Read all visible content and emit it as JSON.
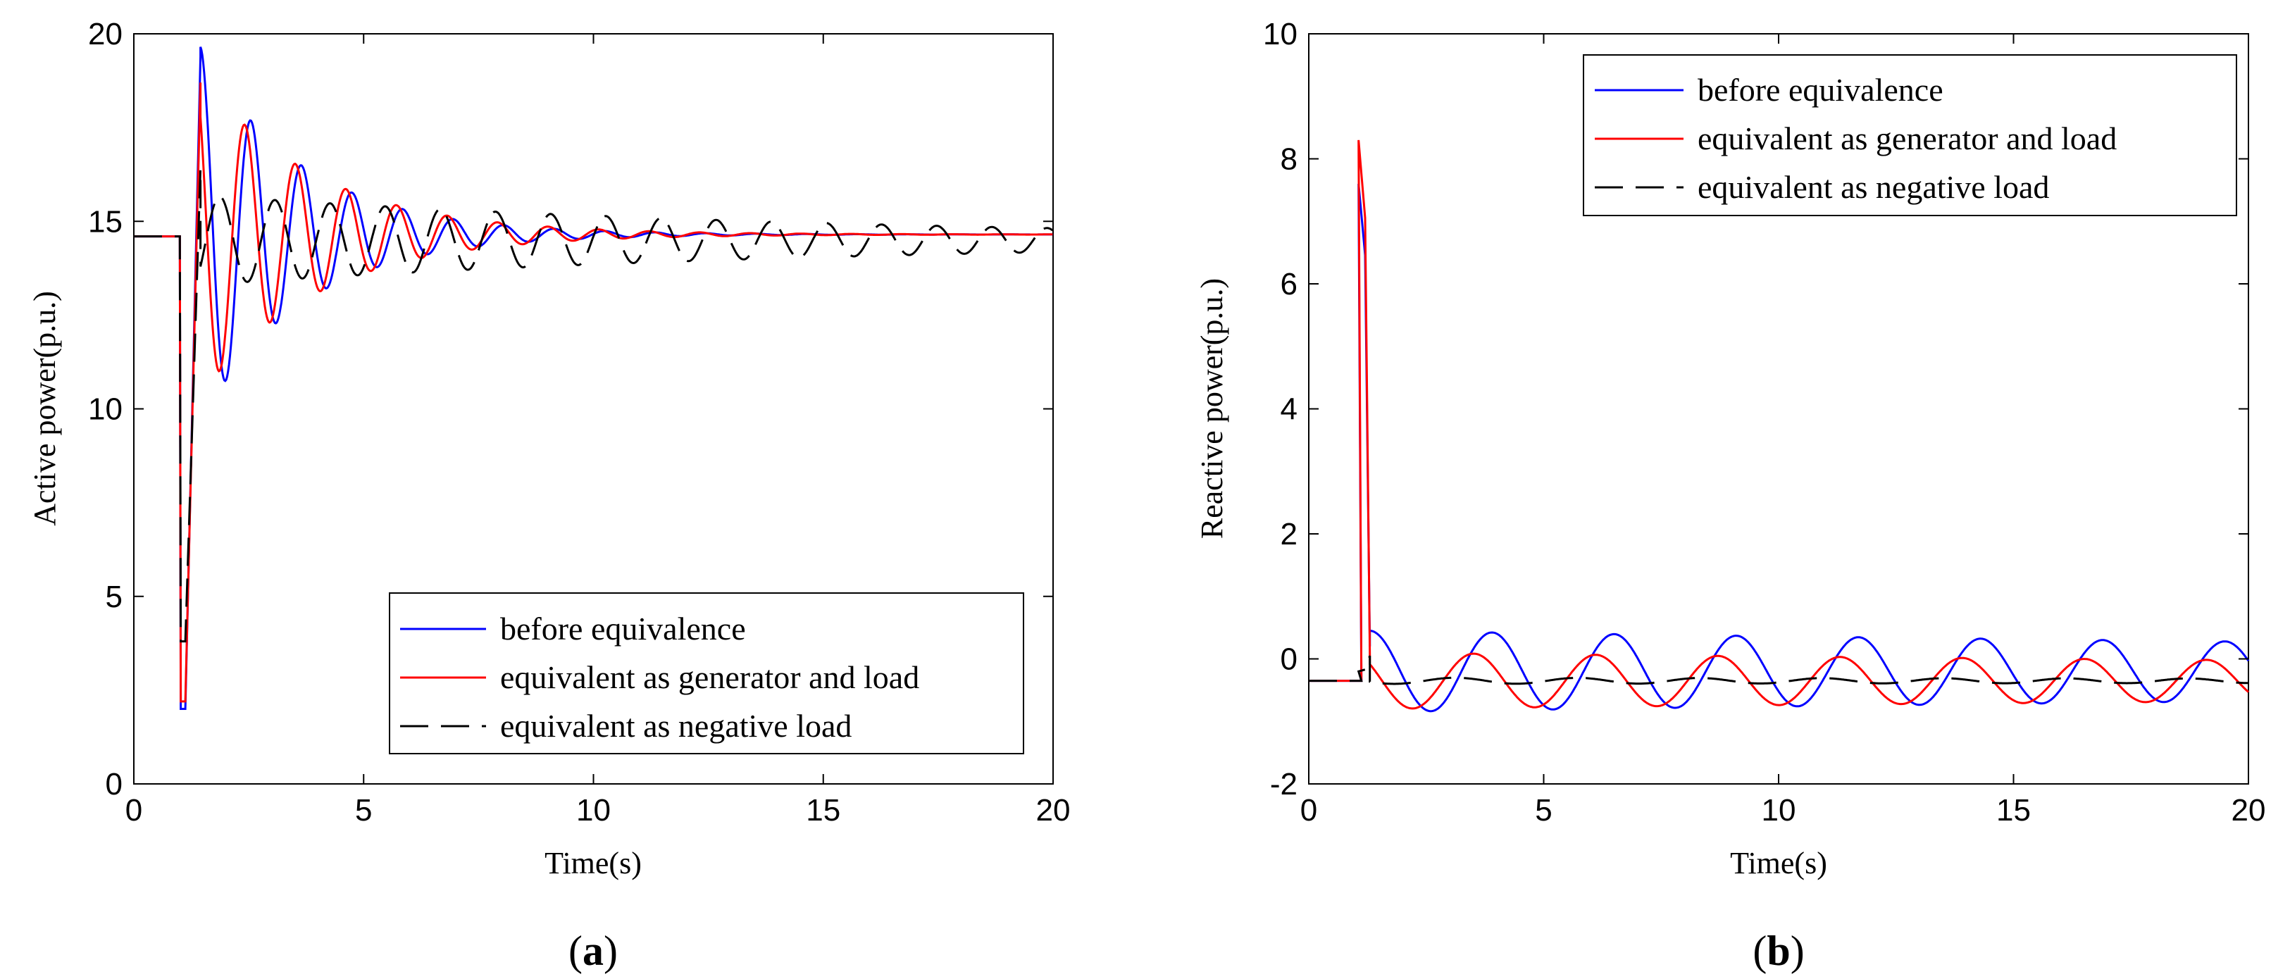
{
  "figure": {
    "panel_a_label": {
      "open": "(",
      "letter": "a",
      "close": ")"
    },
    "panel_b_label": {
      "open": "(",
      "letter": "b",
      "close": ")"
    }
  },
  "chart_data": [
    {
      "type": "line",
      "title": "",
      "xlabel": "Time(s)",
      "ylabel": "Active power(p.u.)",
      "xlim": [
        0,
        20
      ],
      "ylim": [
        0,
        20
      ],
      "xticks": [
        0,
        5,
        10,
        15,
        20
      ],
      "yticks": [
        0,
        5,
        10,
        15,
        20
      ],
      "grid": false,
      "legend_position": "bottom-right",
      "fault_time": 1.0,
      "series": [
        {
          "name": "before equivalence",
          "color": "#0000ff",
          "style": "solid",
          "pre": 14.6,
          "dip": 2.0,
          "peak": 19.4,
          "final": 14.65,
          "amp": 5.0,
          "period": 1.1,
          "tau": 2.2,
          "phase": 0.0,
          "noise": 0.0
        },
        {
          "name": "equivalent as generator and load",
          "color": "#ff0000",
          "style": "solid",
          "pre": 14.6,
          "dip": 2.2,
          "peak": 18.7,
          "final": 14.65,
          "amp": 4.3,
          "period": 1.1,
          "tau": 2.5,
          "phase": 0.12,
          "noise": 0.0
        },
        {
          "name": "equivalent as negative load",
          "color": "#000000",
          "style": "dash",
          "pre": 14.6,
          "dip": 3.8,
          "peak": 16.4,
          "final": 14.5,
          "amp": 1.2,
          "period": 1.2,
          "tau": 14.0,
          "phase": 0.65,
          "noise": 0.0
        }
      ]
    },
    {
      "type": "line",
      "title": "",
      "xlabel": "Time(s)",
      "ylabel": "Reactive power(p.u.)",
      "xlim": [
        0,
        20
      ],
      "ylim": [
        -2,
        10
      ],
      "xticks": [
        0,
        5,
        10,
        15,
        20
      ],
      "yticks": [
        -2,
        0,
        2,
        4,
        6,
        8,
        10
      ],
      "grid": false,
      "legend_position": "top-right",
      "fault_time": 1.0,
      "series": [
        {
          "name": "before equivalence",
          "color": "#0000ff",
          "style": "solid",
          "pre": -0.35,
          "dip": -0.35,
          "peak": 7.6,
          "final": -0.2,
          "amp": 0.65,
          "period": 2.6,
          "tau": 60.0,
          "phase": 0.0,
          "noise": 0.0
        },
        {
          "name": "equivalent as generator and load",
          "color": "#ff0000",
          "style": "solid",
          "pre": -0.35,
          "dip": -0.35,
          "peak": 8.3,
          "final": -0.35,
          "amp": 0.45,
          "period": 2.6,
          "tau": 60.0,
          "phase": 0.15,
          "noise": 0.0
        },
        {
          "name": "equivalent as negative load",
          "color": "#000000",
          "style": "dash",
          "pre": -0.35,
          "dip": -0.35,
          "peak": -0.2,
          "final": -0.35,
          "amp": 0.05,
          "period": 2.6,
          "tau": 60.0,
          "phase": 0.3,
          "noise": 0.0
        }
      ]
    }
  ]
}
